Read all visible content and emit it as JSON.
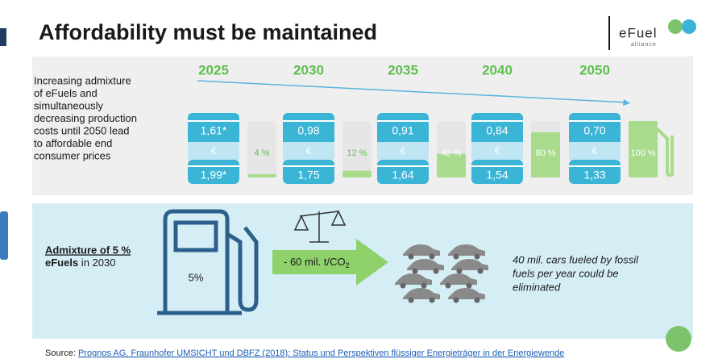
{
  "header": {
    "title": "Affordability must be maintained",
    "logo": {
      "name": "eFuel",
      "sub": "alliance"
    }
  },
  "description": [
    "Increasing admixture",
    "of eFuels and",
    "simultaneously",
    "decreasing production",
    "costs until 2050 lead",
    "to affordable end",
    "consumer prices"
  ],
  "currency": "€",
  "barrels": [
    {
      "year": "2025",
      "top": "1,61*",
      "bottom": "1,99*",
      "share": "4 %"
    },
    {
      "year": "2030",
      "top": "0,98",
      "bottom": "1,75",
      "share": "12 %"
    },
    {
      "year": "2035",
      "top": "0,91",
      "bottom": "1,64",
      "share": "42 %"
    },
    {
      "year": "2040",
      "top": "0,84",
      "bottom": "1,54",
      "share": "80 %"
    },
    {
      "year": "2050",
      "top": "0,70",
      "bottom": "1,33",
      "share": "100 %"
    }
  ],
  "panel": {
    "admixture_bold": "Admixture of 5 %",
    "admixture_bold2": "eFuels",
    "admixture_rest": " in 2030",
    "pump_label": "5%",
    "arrow_label": "- 60 mil. t/CO",
    "arrow_sub": "2",
    "cars_text": [
      "40 mil. cars fueled by fossil",
      "fuels per year could be",
      "eliminated"
    ]
  },
  "source": {
    "prefix": "Source: ",
    "link": "Prognos AG, Fraunhofer UMSICHT und DBFZ (2018): Status und Perspektiven flüssiger Energieträger in der Energiewende"
  }
}
